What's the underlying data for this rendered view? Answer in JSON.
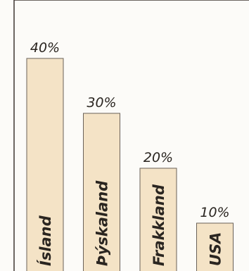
{
  "chart_data": {
    "type": "bar",
    "categories": [
      "Ísland",
      "Þýskaland",
      "Frakkland",
      "USA"
    ],
    "values": [
      40,
      30,
      20,
      10
    ],
    "data_labels": [
      "40%",
      "30%",
      "20%",
      "10%"
    ],
    "ylim": [
      0,
      50
    ],
    "grid": false,
    "title": "",
    "xlabel": "",
    "ylabel": ""
  },
  "colors": {
    "bar_fill": "#f4e3c6",
    "bar_stroke": "#6a6158",
    "text": "#2a2520"
  }
}
